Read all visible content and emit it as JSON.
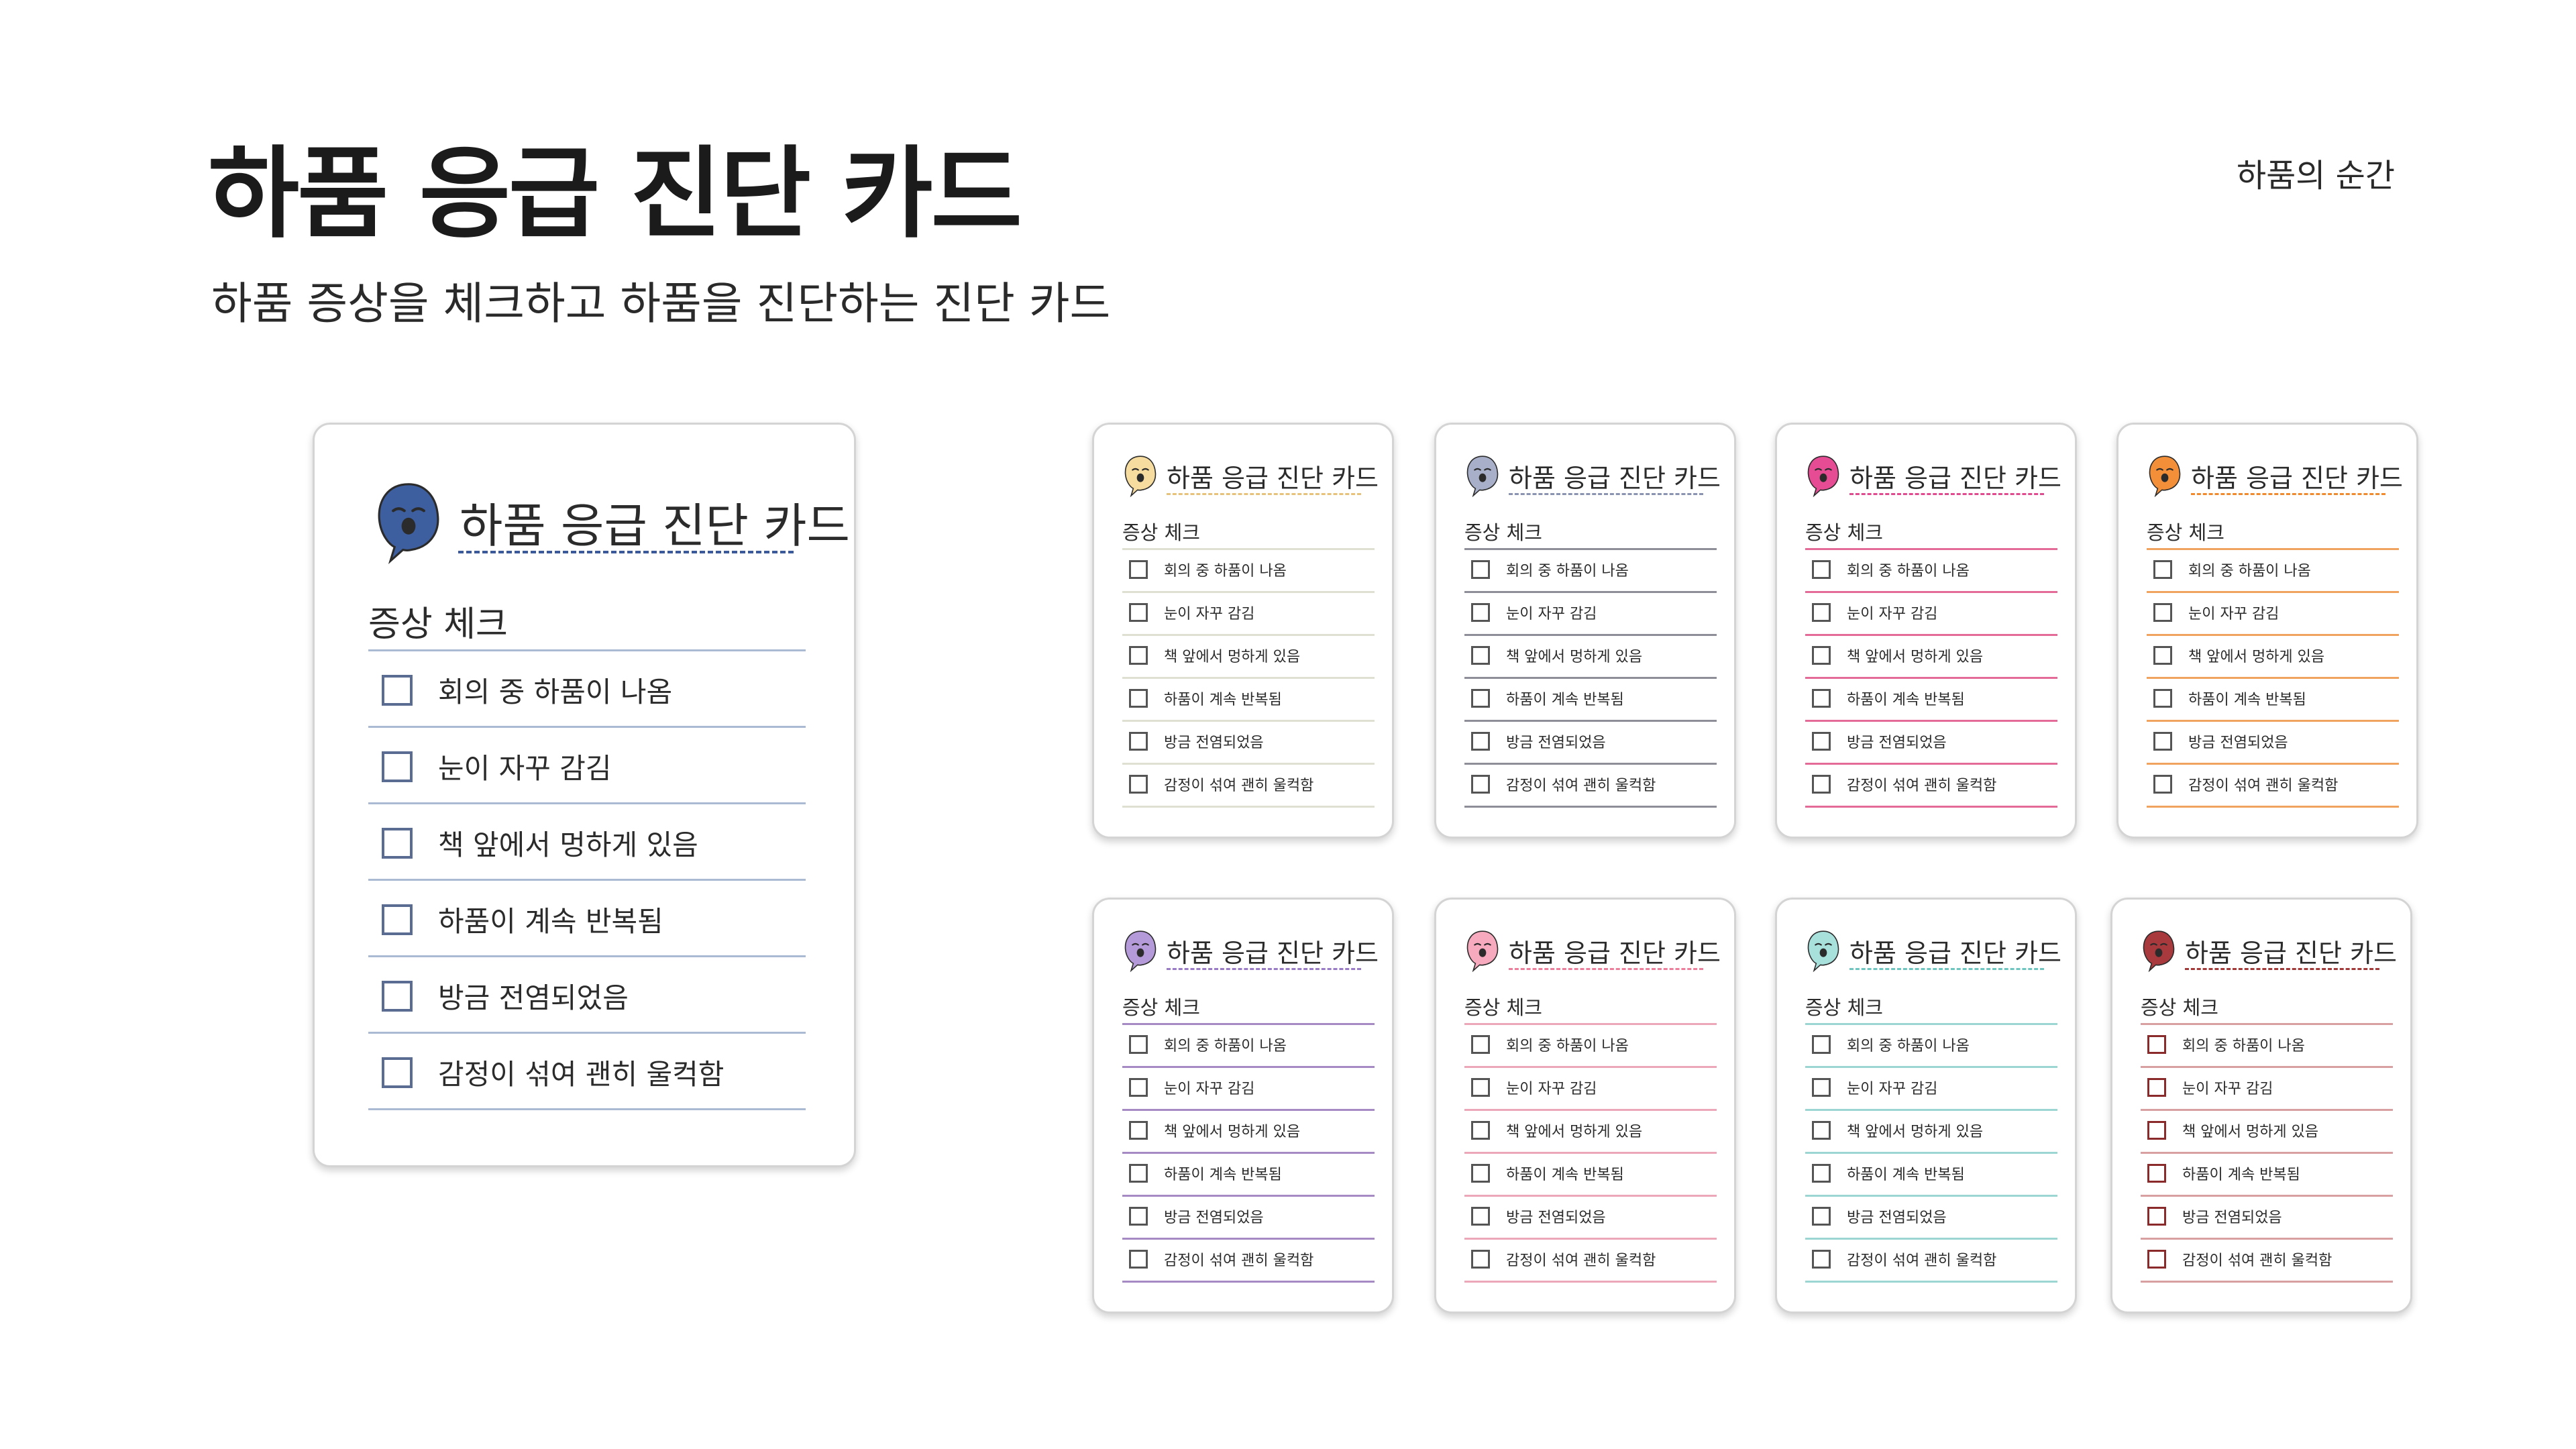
{
  "page": {
    "title": "하품 응급 진단 카드",
    "subtitle": "하품 증상을 체크하고 하품을 진단하는 진단 카드",
    "brand": "하품의 순간"
  },
  "card": {
    "title": "하품 응급 진단 카드",
    "section_label": "증상 체크",
    "items": [
      "회의 중 하품이 나옴",
      "눈이 자꾸 감김",
      "책 앞에서 멍하게 있음",
      "하품이 계속 반복됨",
      "방금 전염되었음",
      "감정이 섞여 괜히 울컥함"
    ]
  },
  "cards": [
    {
      "variant": "large",
      "icon": "crying-yawn-face-icon",
      "accent": "#3a5a9c",
      "icon_fill": "#3d5f9f",
      "rule_color": "#a9bad2",
      "checkbox_color": "#5b6c92",
      "checked": [
        false,
        false,
        false,
        false,
        false,
        false
      ]
    },
    {
      "variant": "small",
      "icon": "sleepy-face-icon",
      "accent": "#e6c27a",
      "icon_fill": "#f6dc9e",
      "rule_color": "#e0e0d2",
      "checkbox_color": "#555555",
      "checked": [
        false,
        false,
        false,
        false,
        false,
        false
      ]
    },
    {
      "variant": "small",
      "icon": "tired-face-icon",
      "accent": "#8a93b0",
      "icon_fill": "#a8afc8",
      "rule_color": "#8e8e98",
      "checkbox_color": "#555555",
      "checked": [
        false,
        false,
        false,
        false,
        false,
        false
      ]
    },
    {
      "variant": "small",
      "icon": "yawning-face-icon",
      "accent": "#e04a8e",
      "icon_fill": "#e64c94",
      "rule_color": "#e46a98",
      "checkbox_color": "#555555",
      "checked": [
        false,
        false,
        false,
        false,
        false,
        false
      ]
    },
    {
      "variant": "small",
      "icon": "weary-face-icon",
      "accent": "#ef8a2e",
      "icon_fill": "#f28f38",
      "rule_color": "#f0a35e",
      "checkbox_color": "#555555",
      "checked": [
        false,
        false,
        false,
        false,
        false,
        false
      ]
    },
    {
      "variant": "small",
      "icon": "drowsy-face-icon",
      "accent": "#9a7cc6",
      "icon_fill": "#b49ad8",
      "rule_color": "#a68ac4",
      "checkbox_color": "#555555",
      "checked": [
        false,
        false,
        false,
        false,
        false,
        false
      ]
    },
    {
      "variant": "small",
      "icon": "sleepy-eyes-face-icon",
      "accent": "#ec7f9c",
      "icon_fill": "#f7a9bd",
      "rule_color": "#eca8b8",
      "checkbox_color": "#555555",
      "checked": [
        false,
        false,
        false,
        false,
        false,
        false
      ]
    },
    {
      "variant": "small",
      "icon": "calm-yawn-face-icon",
      "accent": "#6fc6c0",
      "icon_fill": "#a8e0dc",
      "rule_color": "#9cd6d2",
      "checkbox_color": "#555555",
      "checked": [
        false,
        false,
        false,
        false,
        false,
        false
      ]
    },
    {
      "variant": "small",
      "icon": "frowning-face-icon",
      "accent": "#a23a3a",
      "icon_fill": "#a8393d",
      "rule_color": "#d8a0a0",
      "checkbox_color": "#8a2a2a",
      "checked": [
        false,
        false,
        false,
        false,
        false,
        false
      ]
    }
  ]
}
